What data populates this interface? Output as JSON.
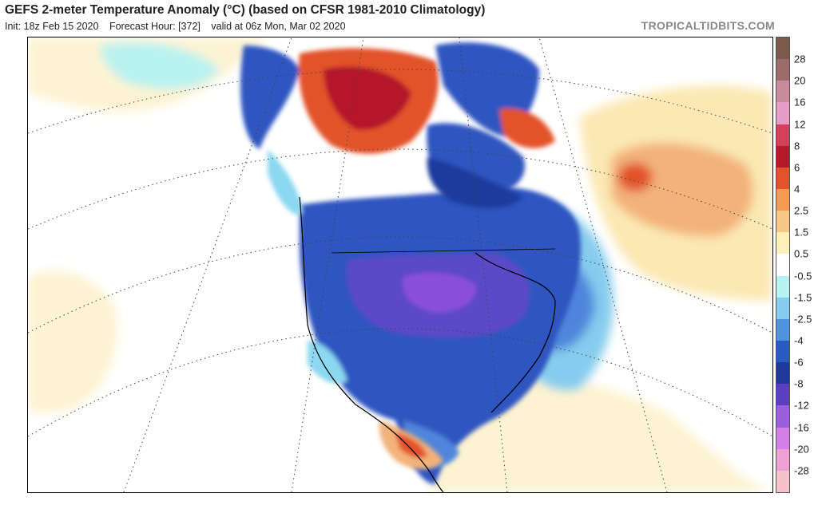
{
  "header": {
    "title": "GEFS 2-meter Temperature Anomaly (°C) (based on CFSR 1981-2010 Climatology)",
    "init": "Init: 18z Feb 15 2020",
    "forecast_hour": "Forecast Hour: [372]",
    "valid": "valid at 06z Mon, Mar 02 2020",
    "brand": "TROPICALTIDBITS.COM"
  },
  "colorbar": {
    "labels": [
      "28",
      "20",
      "16",
      "12",
      "8",
      "6",
      "4",
      "2.5",
      "1.5",
      "0.5",
      "-0.5",
      "-1.5",
      "-2.5",
      "-4",
      "-6",
      "-8",
      "-12",
      "-16",
      "-20",
      "-28"
    ],
    "colors": [
      "#7a5a4a",
      "#9c6b6b",
      "#c98a9e",
      "#e79cc6",
      "#d2405a",
      "#b5192a",
      "#e2522c",
      "#f39a55",
      "#f8c685",
      "#fdf0b8",
      "#ffffff",
      "#b8f2f0",
      "#86ccee",
      "#4e93de",
      "#2a5bc2",
      "#1f3a9c",
      "#5a3fc0",
      "#9b5ee0",
      "#d37fe6",
      "#ee9fd4",
      "#f6c2c8"
    ]
  },
  "map": {
    "region": "North America",
    "anomaly_colors": {
      "strong_cold": "#8a4fd8",
      "cold": "#2d55c0",
      "moderate_cold": "#4f86db",
      "slight_cold": "#8bd8f0",
      "neutral": "#ffffff",
      "slight_warm": "#fbe8b4",
      "warm": "#f3b279",
      "strong_warm": "#c8352f"
    }
  }
}
